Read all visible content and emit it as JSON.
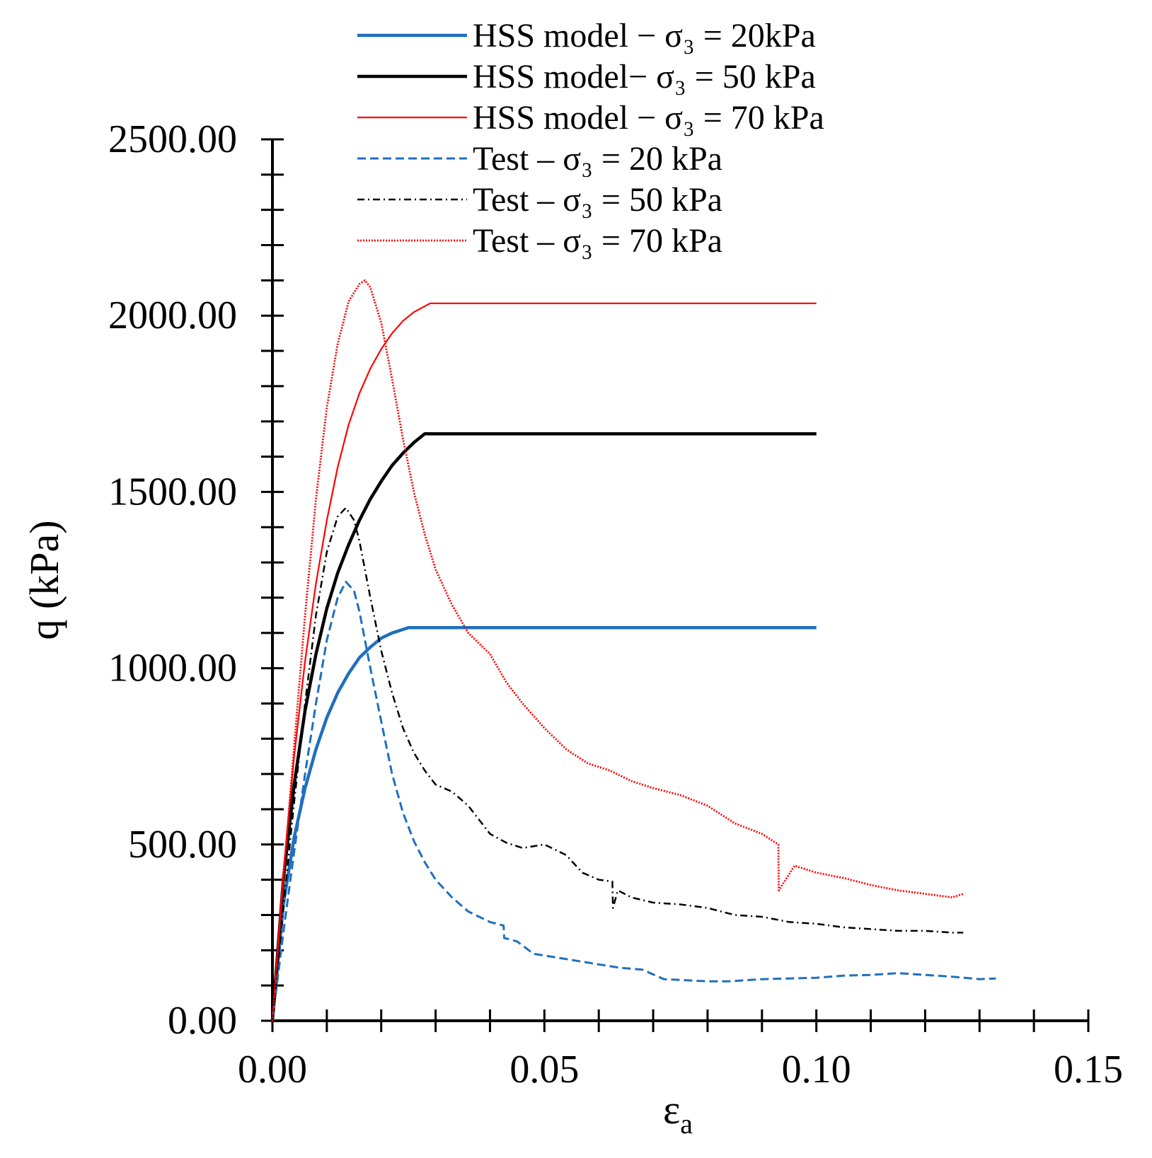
{
  "chart_data": {
    "type": "line",
    "title": "",
    "xlabel": "ε",
    "xlabel_sub": "a",
    "ylabel": "q (kPa)",
    "xlim": [
      0,
      0.15
    ],
    "ylim": [
      0,
      2500
    ],
    "x_ticks": [
      0,
      0.05,
      0.1,
      0.15
    ],
    "x_tick_labels": [
      "0.00",
      "0.05",
      "0.10",
      "0.15"
    ],
    "y_ticks": [
      0,
      500,
      1000,
      1500,
      2000,
      2500
    ],
    "y_tick_labels": [
      "0.00",
      "500.00",
      "1000.00",
      "1500.00",
      "2000.00",
      "2500.00"
    ],
    "grid": false,
    "legend_position": "top",
    "series": [
      {
        "name": "HSS model − σ₃ = 20kPa",
        "color": "#1f6fbf",
        "style": "solid-thick",
        "x": [
          0,
          0.002,
          0.004,
          0.006,
          0.008,
          0.01,
          0.012,
          0.014,
          0.016,
          0.018,
          0.02,
          0.022,
          0.025,
          0.1
        ],
        "y": [
          0,
          330,
          520,
          660,
          770,
          860,
          930,
          985,
          1030,
          1060,
          1085,
          1100,
          1115,
          1115
        ]
      },
      {
        "name": "HSS model− σ₃ = 50 kPa",
        "color": "#000000",
        "style": "solid-thick",
        "x": [
          0,
          0.002,
          0.004,
          0.006,
          0.008,
          0.01,
          0.012,
          0.014,
          0.016,
          0.018,
          0.02,
          0.022,
          0.024,
          0.026,
          0.028,
          0.1
        ],
        "y": [
          0,
          400,
          670,
          880,
          1040,
          1170,
          1270,
          1350,
          1420,
          1480,
          1530,
          1575,
          1610,
          1640,
          1665,
          1665
        ]
      },
      {
        "name": "HSS model − σ₃ = 70 kPa",
        "color": "#ff0000",
        "style": "solid-thin",
        "x": [
          0,
          0.002,
          0.004,
          0.006,
          0.008,
          0.01,
          0.012,
          0.014,
          0.016,
          0.018,
          0.02,
          0.022,
          0.024,
          0.026,
          0.029,
          0.1
        ],
        "y": [
          0,
          420,
          750,
          1020,
          1240,
          1420,
          1570,
          1690,
          1780,
          1850,
          1905,
          1950,
          1985,
          2010,
          2035,
          2035
        ]
      },
      {
        "name": "Test – σ₃ = 20 kPa",
        "color": "#1f6fbf",
        "style": "dashed",
        "x": [
          0,
          0.002,
          0.004,
          0.006,
          0.008,
          0.01,
          0.012,
          0.0135,
          0.015,
          0.016,
          0.018,
          0.02,
          0.022,
          0.024,
          0.026,
          0.028,
          0.03,
          0.033,
          0.036,
          0.04,
          0.0425,
          0.0426,
          0.045,
          0.048,
          0.052,
          0.056,
          0.06,
          0.064,
          0.068,
          0.072,
          0.076,
          0.08,
          0.084,
          0.09,
          0.095,
          0.1,
          0.105,
          0.11,
          0.115,
          0.12,
          0.125,
          0.13,
          0.133
        ],
        "y": [
          0,
          250,
          480,
          700,
          900,
          1080,
          1200,
          1245,
          1220,
          1160,
          1000,
          850,
          700,
          590,
          510,
          450,
          400,
          350,
          310,
          280,
          270,
          235,
          225,
          190,
          180,
          170,
          160,
          150,
          145,
          118,
          115,
          112,
          112,
          118,
          120,
          122,
          128,
          130,
          135,
          130,
          125,
          118,
          120
        ]
      },
      {
        "name": "Test – σ₃ = 50 kPa",
        "color": "#000000",
        "style": "dashdot",
        "x": [
          0,
          0.002,
          0.004,
          0.006,
          0.008,
          0.01,
          0.012,
          0.0135,
          0.015,
          0.016,
          0.018,
          0.02,
          0.022,
          0.024,
          0.026,
          0.028,
          0.03,
          0.033,
          0.036,
          0.038,
          0.04,
          0.043,
          0.046,
          0.05,
          0.054,
          0.057,
          0.06,
          0.0625,
          0.0626,
          0.0635,
          0.066,
          0.07,
          0.075,
          0.08,
          0.085,
          0.09,
          0.095,
          0.1,
          0.105,
          0.11,
          0.115,
          0.12,
          0.125,
          0.127
        ],
        "y": [
          0,
          320,
          620,
          900,
          1150,
          1330,
          1430,
          1455,
          1420,
          1360,
          1200,
          1050,
          930,
          830,
          760,
          710,
          670,
          650,
          610,
          570,
          530,
          505,
          490,
          500,
          470,
          420,
          400,
          395,
          320,
          370,
          350,
          335,
          330,
          320,
          300,
          295,
          280,
          275,
          265,
          260,
          255,
          255,
          250,
          250
        ]
      },
      {
        "name": "Test – σ₃ = 70 kPa",
        "color": "#ff0000",
        "style": "dotted",
        "x": [
          0,
          0.002,
          0.004,
          0.006,
          0.008,
          0.01,
          0.012,
          0.014,
          0.016,
          0.017,
          0.018,
          0.02,
          0.022,
          0.024,
          0.026,
          0.028,
          0.03,
          0.033,
          0.036,
          0.04,
          0.043,
          0.046,
          0.05,
          0.054,
          0.058,
          0.062,
          0.066,
          0.07,
          0.075,
          0.08,
          0.085,
          0.09,
          0.093,
          0.0931,
          0.096,
          0.1,
          0.105,
          0.11,
          0.115,
          0.12,
          0.125,
          0.127
        ],
        "y": [
          0,
          400,
          780,
          1150,
          1480,
          1740,
          1920,
          2040,
          2090,
          2100,
          2080,
          1980,
          1820,
          1650,
          1500,
          1380,
          1280,
          1180,
          1100,
          1040,
          960,
          900,
          830,
          770,
          730,
          710,
          680,
          660,
          640,
          610,
          560,
          530,
          500,
          370,
          440,
          420,
          405,
          385,
          370,
          360,
          350,
          360
        ]
      }
    ]
  }
}
